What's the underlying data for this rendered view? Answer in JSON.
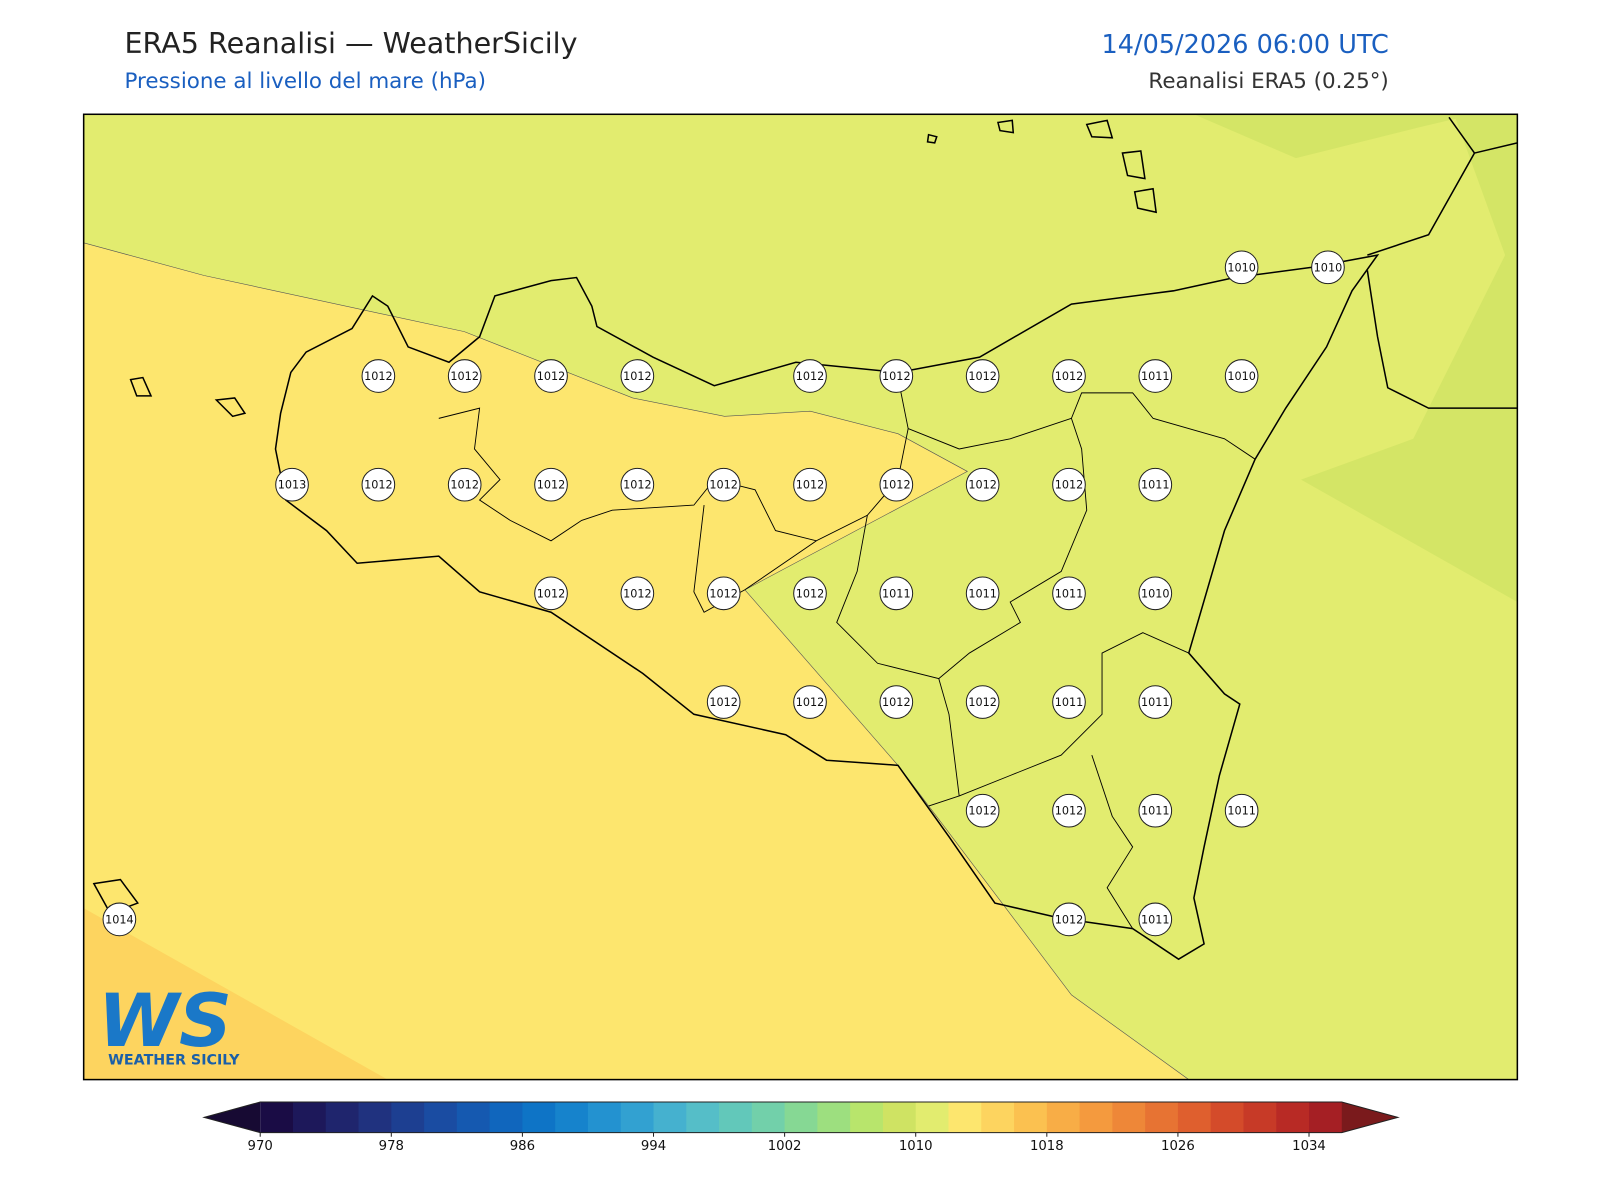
{
  "header": {
    "title": "ERA5 Reanalisi — WeatherSicily",
    "subtitle": "Pressione al livello del mare (hPa)",
    "date": "14/05/2026 06:00 UTC",
    "source": "Reanalisi ERA5 (0.25°)"
  },
  "logo": {
    "mark": "WS",
    "name": "WEATHER SICILY"
  },
  "stations": {
    "rows": [
      [
        null,
        null,
        null,
        null,
        null,
        null,
        null,
        null,
        null,
        null,
        null,
        null,
        null,
        1010,
        1010
      ],
      [
        null,
        null,
        null,
        1012,
        1012,
        1012,
        1012,
        null,
        1012,
        1012,
        1012,
        1012,
        1011,
        1010,
        null
      ],
      [
        null,
        null,
        1013,
        1012,
        1012,
        1012,
        1012,
        1012,
        1012,
        1012,
        1012,
        1012,
        1011,
        null,
        null
      ],
      [
        null,
        null,
        null,
        null,
        null,
        1012,
        1012,
        1012,
        1012,
        1011,
        1011,
        1011,
        1010,
        null,
        null
      ],
      [
        null,
        null,
        null,
        null,
        null,
        null,
        null,
        1012,
        1012,
        1012,
        1012,
        1011,
        1011,
        null,
        null
      ],
      [
        null,
        null,
        null,
        null,
        null,
        null,
        null,
        null,
        null,
        null,
        1012,
        1012,
        1011,
        1011,
        null
      ],
      [
        1014,
        null,
        null,
        null,
        null,
        null,
        null,
        null,
        null,
        null,
        null,
        1012,
        1011,
        null,
        null
      ]
    ]
  },
  "colorbar": {
    "clim": [
      970,
      1036
    ],
    "ticks": [
      970,
      978,
      986,
      994,
      1002,
      1010,
      1018,
      1026,
      1034
    ],
    "under_color": "#170a33",
    "over_color": "#7a1a1c",
    "colors": [
      "#1a0c45",
      "#1d185a",
      "#1f256d",
      "#20327f",
      "#1d3f91",
      "#1a4ca2",
      "#1559b0",
      "#1066bd",
      "#0e74c6",
      "#1683cc",
      "#2392d0",
      "#32a1d1",
      "#45b1cf",
      "#55bec8",
      "#62c8ba",
      "#72d0aa",
      "#86d894",
      "#9ddf7f",
      "#b8e56c",
      "#cfe363",
      "#e2ec6f",
      "#fde66e",
      "#fdd45f",
      "#fbc150",
      "#f8ad46",
      "#f49a3e",
      "#ee8738",
      "#e77333",
      "#df5f2e",
      "#d44b2a",
      "#c73a27",
      "#b82a25",
      "#a51f24"
    ]
  }
}
